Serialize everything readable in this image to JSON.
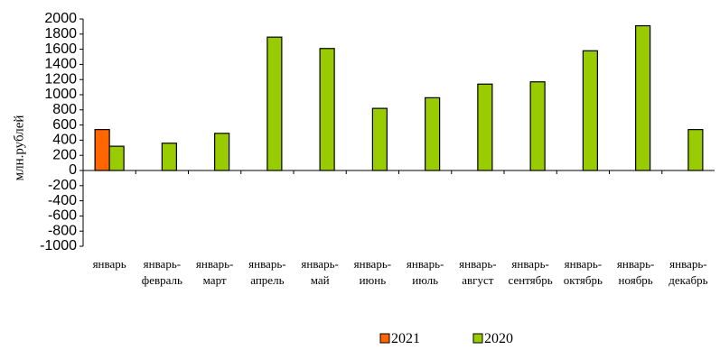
{
  "chart_data": {
    "type": "bar",
    "ylabel": "млн.рублей",
    "ylim": [
      -1000,
      2000
    ],
    "ytick_step": 200,
    "yticks": [
      "2000",
      "1800",
      "1600",
      "1400",
      "1200",
      "1000",
      "800",
      "600",
      "400",
      "200",
      "0",
      "-200",
      "-400",
      "-600",
      "-800",
      "-1000"
    ],
    "categories": [
      [
        "январь"
      ],
      [
        "январь-",
        "февраль"
      ],
      [
        "январь-",
        "март"
      ],
      [
        "январь-",
        "апрель"
      ],
      [
        "январь-",
        "май"
      ],
      [
        "январь-",
        "июнь"
      ],
      [
        "январь-",
        "июль"
      ],
      [
        "январь-",
        "август"
      ],
      [
        "январь-",
        "сентябрь"
      ],
      [
        "январь-",
        "октябрь"
      ],
      [
        "январь-",
        "ноябрь"
      ],
      [
        "январь-",
        "декабрь"
      ]
    ],
    "series": [
      {
        "name": "2021",
        "color": "#ff6600",
        "values": [
          540,
          null,
          null,
          null,
          null,
          null,
          null,
          null,
          null,
          null,
          null,
          null
        ]
      },
      {
        "name": "2020",
        "color": "#99cc00",
        "values": [
          320,
          360,
          490,
          1760,
          1610,
          820,
          960,
          1140,
          1170,
          1580,
          1910,
          540
        ]
      }
    ],
    "legend_position": "bottom-center",
    "grid": false
  }
}
